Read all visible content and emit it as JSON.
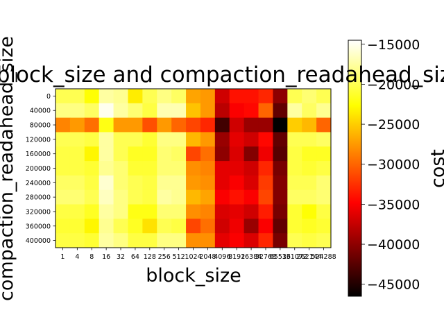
{
  "chart_data": {
    "type": "heatmap",
    "title": "block_size and compaction_readahead_size",
    "xlabel": "block_size",
    "ylabel": "compaction_readahead_size",
    "colorbar_label": "cost",
    "colormap": "hot",
    "color_range": [
      -46500,
      -14500
    ],
    "colorbar_ticks": [
      -15000,
      -20000,
      -25000,
      -30000,
      -35000,
      -40000,
      -45000
    ],
    "colorbar_tick_labels": [
      "−15000",
      "−20000",
      "−25000",
      "−30000",
      "−35000",
      "−40000",
      "−45000"
    ],
    "x_categories": [
      "1",
      "4",
      "8",
      "16",
      "32",
      "64",
      "128",
      "256",
      "512",
      "1024",
      "2048",
      "4096",
      "8192",
      "16384",
      "32768",
      "65536",
      "131072",
      "262144",
      "524288"
    ],
    "y_categories": [
      "0",
      "40000",
      "80000",
      "120000",
      "160000",
      "200000",
      "240000",
      "280000",
      "320000",
      "360000",
      "400000"
    ],
    "values": [
      [
        -20000,
        -20000,
        -22500,
        -17500,
        -18000,
        -23500,
        -20000,
        -18500,
        -19500,
        -27000,
        -27500,
        -37000,
        -34000,
        -34000,
        -33000,
        -40000,
        -20000,
        -19000,
        -20000
      ],
      [
        -18500,
        -18500,
        -19500,
        -15000,
        -17500,
        -19000,
        -20500,
        -17000,
        -17000,
        -25500,
        -27500,
        -38000,
        -35000,
        -34500,
        -30000,
        -42000,
        -17500,
        -19500,
        -18000
      ],
      [
        -28500,
        -27500,
        -29500,
        -22000,
        -27500,
        -27500,
        -31000,
        -27500,
        -30000,
        -31500,
        -33000,
        -43500,
        -37000,
        -39500,
        -39500,
        -46500,
        -25000,
        -26000,
        -30000
      ],
      [
        -20000,
        -20000,
        -20500,
        -17500,
        -20000,
        -20000,
        -21000,
        -18500,
        -18500,
        -26000,
        -27500,
        -39500,
        -36000,
        -37000,
        -34500,
        -42000,
        -20000,
        -20000,
        -19500
      ],
      [
        -20500,
        -20500,
        -23000,
        -17500,
        -20000,
        -21500,
        -21500,
        -19000,
        -19500,
        -31500,
        -29500,
        -40000,
        -36500,
        -40500,
        -35500,
        -42500,
        -20500,
        -21500,
        -21500
      ],
      [
        -20500,
        -20500,
        -21000,
        -18000,
        -19000,
        -21000,
        -21000,
        -19000,
        -19000,
        -28000,
        -28500,
        -36000,
        -36000,
        -37000,
        -33000,
        -41000,
        -20500,
        -21000,
        -20500
      ],
      [
        -19500,
        -19500,
        -20500,
        -16000,
        -19000,
        -20000,
        -20500,
        -18000,
        -18000,
        -27500,
        -28000,
        -36000,
        -35000,
        -36500,
        -32000,
        -40500,
        -20000,
        -20000,
        -19000
      ],
      [
        -19000,
        -19000,
        -20000,
        -16500,
        -18500,
        -20000,
        -20500,
        -17500,
        -18000,
        -26000,
        -27000,
        -35000,
        -34000,
        -35000,
        -31500,
        -40500,
        -19500,
        -19500,
        -19000
      ],
      [
        -20500,
        -20500,
        -21500,
        -17500,
        -18500,
        -22000,
        -22000,
        -19000,
        -19000,
        -28000,
        -28500,
        -36500,
        -36000,
        -37000,
        -33500,
        -41000,
        -21000,
        -22500,
        -20500
      ],
      [
        -21000,
        -21000,
        -23000,
        -18000,
        -20000,
        -21500,
        -24000,
        -20000,
        -20500,
        -31500,
        -29500,
        -37000,
        -35500,
        -39500,
        -35000,
        -42000,
        -21000,
        -21500,
        -21000
      ],
      [
        -20500,
        -20500,
        -21000,
        -17500,
        -18500,
        -20500,
        -20500,
        -18500,
        -18500,
        -28000,
        -28000,
        -36000,
        -35000,
        -36500,
        -33000,
        -41000,
        -20000,
        -20500,
        -20000
      ]
    ]
  }
}
